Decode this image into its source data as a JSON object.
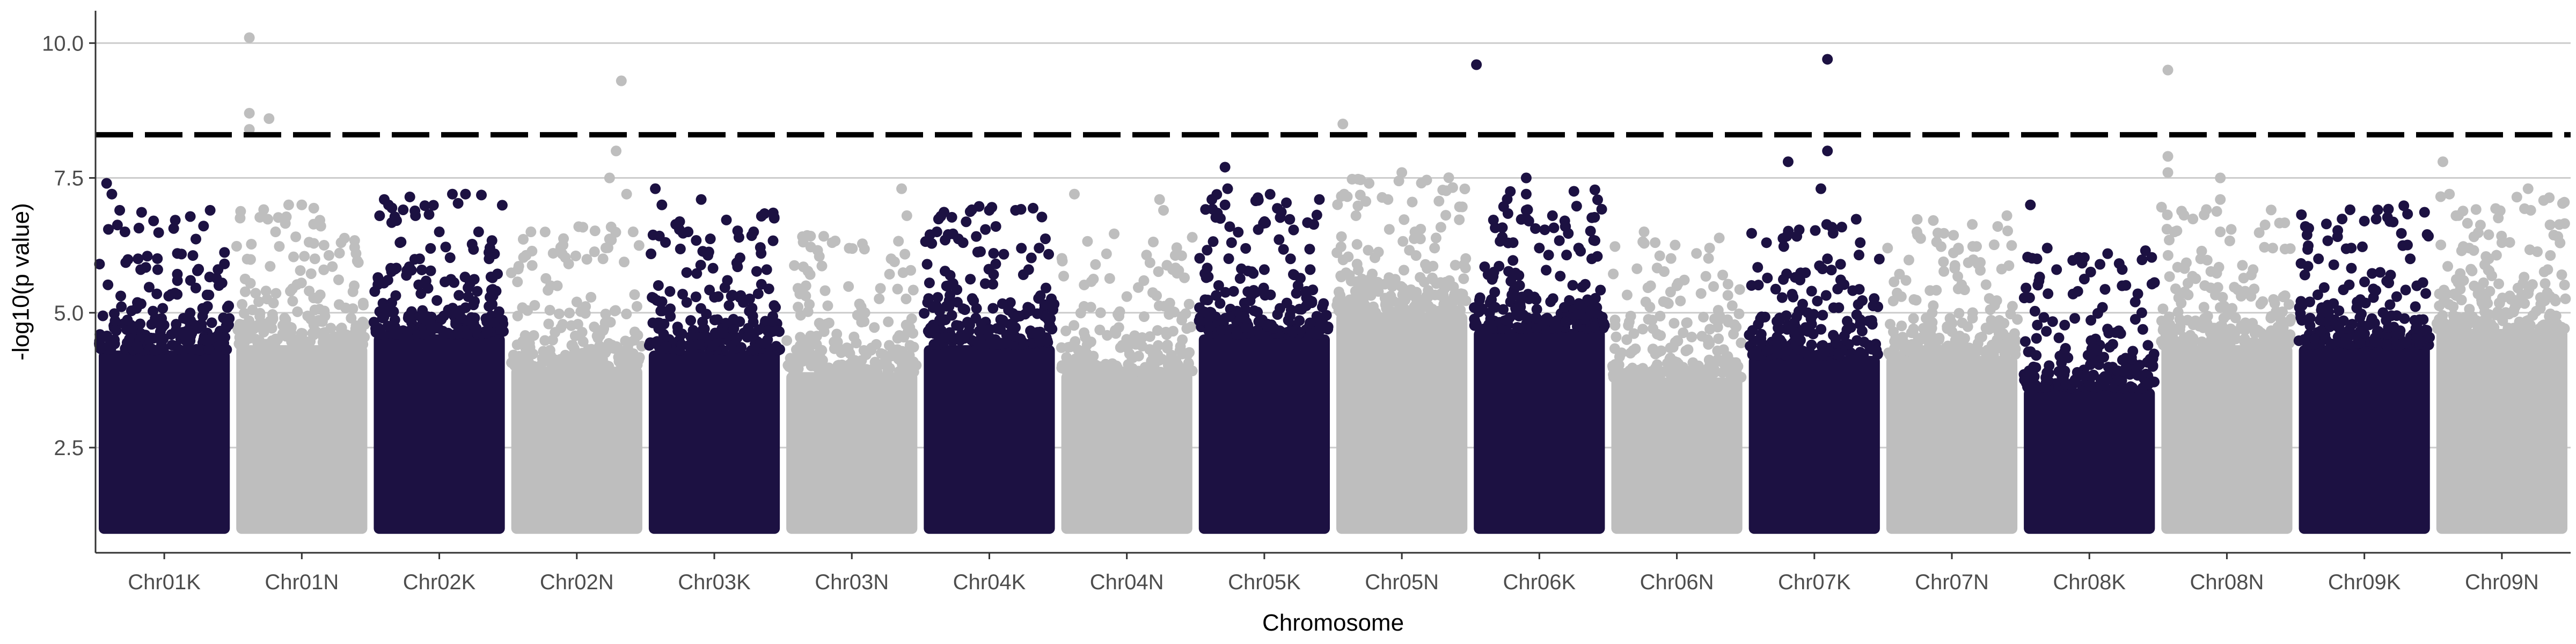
{
  "chart_data": {
    "type": "scatter",
    "subtype": "manhattan",
    "title": "",
    "xlabel": "Chromosome",
    "ylabel": "-log10(p value)",
    "ylim": [
      0.55,
      10.6
    ],
    "y_ticks": [
      2.5,
      5.0,
      7.5,
      10.0
    ],
    "y_tick_labels": [
      "2.5",
      "5.0",
      "7.5",
      "10.0"
    ],
    "grid": "horizontal major lines",
    "legend": "none",
    "colors": {
      "dark": "#1c1142",
      "light": "#bebebe",
      "threshold": "#000000",
      "grid": "#cccccc"
    },
    "threshold": {
      "value": 8.3,
      "style": "dashed"
    },
    "point_floor": 1.0,
    "categories": [
      "Chr01K",
      "Chr01N",
      "Chr02K",
      "Chr02N",
      "Chr03K",
      "Chr03N",
      "Chr04K",
      "Chr04N",
      "Chr05K",
      "Chr05N",
      "Chr06K",
      "Chr06N",
      "Chr07K",
      "Chr07N",
      "Chr08K",
      "Chr08N",
      "Chr09K",
      "Chr09N"
    ],
    "series": [
      {
        "category": "Chr01K",
        "color": "dark",
        "dense_top": 4.3,
        "peaks": [
          [
            0.06,
            7.4
          ],
          [
            0.1,
            7.2
          ],
          [
            0.16,
            6.9
          ],
          [
            0.2,
            6.5
          ],
          [
            0.3,
            6.0
          ],
          [
            0.45,
            5.8
          ],
          [
            0.6,
            6.1
          ],
          [
            0.85,
            6.9
          ],
          [
            0.7,
            5.6
          ]
        ]
      },
      {
        "category": "Chr01N",
        "color": "light",
        "dense_top": 4.4,
        "peaks": [
          [
            0.1,
            10.1
          ],
          [
            0.1,
            8.7
          ],
          [
            0.1,
            8.4
          ],
          [
            0.25,
            8.6
          ],
          [
            0.3,
            6.5
          ],
          [
            0.4,
            7.0
          ],
          [
            0.5,
            7.0
          ],
          [
            0.6,
            6.0
          ],
          [
            0.8,
            6.3
          ],
          [
            0.9,
            5.5
          ]
        ]
      },
      {
        "category": "Chr02K",
        "color": "dark",
        "dense_top": 4.6,
        "peaks": [
          [
            0.08,
            7.1
          ],
          [
            0.2,
            6.3
          ],
          [
            0.35,
            6.0
          ],
          [
            0.5,
            6.5
          ],
          [
            0.6,
            7.2
          ],
          [
            0.7,
            7.2
          ],
          [
            0.8,
            6.5
          ],
          [
            0.88,
            6.0
          ]
        ]
      },
      {
        "category": "Chr02N",
        "color": "light",
        "dense_top": 4.0,
        "peaks": [
          [
            0.15,
            6.5
          ],
          [
            0.3,
            5.5
          ],
          [
            0.5,
            5.2
          ],
          [
            0.75,
            7.5
          ],
          [
            0.8,
            8.0
          ],
          [
            0.84,
            9.3
          ],
          [
            0.88,
            7.2
          ],
          [
            0.93,
            6.5
          ],
          [
            0.7,
            6.0
          ]
        ]
      },
      {
        "category": "Chr03K",
        "color": "dark",
        "dense_top": 4.3,
        "peaks": [
          [
            0.05,
            7.3
          ],
          [
            0.1,
            7.0
          ],
          [
            0.3,
            6.5
          ],
          [
            0.4,
            7.1
          ],
          [
            0.6,
            5.6
          ],
          [
            0.8,
            6.5
          ],
          [
            0.9,
            5.8
          ]
        ]
      },
      {
        "category": "Chr03N",
        "color": "light",
        "dense_top": 3.9,
        "peaks": [
          [
            0.15,
            5.5
          ],
          [
            0.35,
            6.3
          ],
          [
            0.6,
            5.0
          ],
          [
            0.8,
            6.0
          ],
          [
            0.88,
            7.3
          ],
          [
            0.92,
            6.8
          ]
        ]
      },
      {
        "category": "Chr04K",
        "color": "dark",
        "dense_top": 4.4,
        "peaks": [
          [
            0.1,
            6.5
          ],
          [
            0.3,
            6.3
          ],
          [
            0.5,
            6.9
          ],
          [
            0.55,
            6.6
          ],
          [
            0.7,
            6.9
          ],
          [
            0.8,
            5.8
          ],
          [
            0.88,
            6.2
          ]
        ]
      },
      {
        "category": "Chr04N",
        "color": "light",
        "dense_top": 3.9,
        "peaks": [
          [
            0.1,
            7.2
          ],
          [
            0.3,
            5.0
          ],
          [
            0.5,
            5.3
          ],
          [
            0.75,
            7.1
          ],
          [
            0.78,
            6.9
          ],
          [
            0.85,
            5.8
          ]
        ]
      },
      {
        "category": "Chr05K",
        "color": "dark",
        "dense_top": 4.6,
        "peaks": [
          [
            0.2,
            7.7
          ],
          [
            0.22,
            7.3
          ],
          [
            0.2,
            7.0
          ],
          [
            0.25,
            6.3
          ],
          [
            0.5,
            5.8
          ],
          [
            0.7,
            6.0
          ],
          [
            0.85,
            5.8
          ],
          [
            0.92,
            7.1
          ]
        ]
      },
      {
        "category": "Chr05N",
        "color": "light",
        "dense_top": 5.0,
        "peaks": [
          [
            0.05,
            8.5
          ],
          [
            0.06,
            7.2
          ],
          [
            0.15,
            6.8
          ],
          [
            0.25,
            7.4
          ],
          [
            0.5,
            7.6
          ],
          [
            0.6,
            6.5
          ],
          [
            0.75,
            6.2
          ],
          [
            0.85,
            5.5
          ]
        ]
      },
      {
        "category": "Chr06K",
        "color": "dark",
        "dense_top": 4.7,
        "peaks": [
          [
            0.02,
            9.6
          ],
          [
            0.3,
            6.3
          ],
          [
            0.4,
            7.5
          ],
          [
            0.4,
            7.2
          ],
          [
            0.4,
            6.9
          ],
          [
            0.42,
            6.7
          ],
          [
            0.5,
            6.2
          ],
          [
            0.6,
            6.8
          ],
          [
            0.7,
            6.6
          ],
          [
            0.8,
            6.2
          ],
          [
            0.9,
            6.0
          ]
        ]
      },
      {
        "category": "Chr06N",
        "color": "light",
        "dense_top": 3.8,
        "peaks": [
          [
            0.25,
            6.5
          ],
          [
            0.3,
            5.5
          ],
          [
            0.5,
            5.5
          ],
          [
            0.65,
            6.1
          ],
          [
            0.75,
            6.2
          ],
          [
            0.85,
            5.7
          ]
        ]
      },
      {
        "category": "Chr07K",
        "color": "dark",
        "dense_top": 4.2,
        "peaks": [
          [
            0.3,
            7.8
          ],
          [
            0.55,
            7.3
          ],
          [
            0.6,
            9.7
          ],
          [
            0.6,
            8.0
          ],
          [
            0.6,
            6.0
          ],
          [
            0.7,
            5.9
          ],
          [
            0.85,
            6.3
          ],
          [
            0.45,
            5.0
          ]
        ]
      },
      {
        "category": "Chr07N",
        "color": "light",
        "dense_top": 4.2,
        "peaks": [
          [
            0.15,
            5.6
          ],
          [
            0.35,
            5.0
          ],
          [
            0.55,
            6.2
          ],
          [
            0.7,
            5.9
          ],
          [
            0.85,
            6.6
          ],
          [
            0.92,
            6.8
          ]
        ]
      },
      {
        "category": "Chr08K",
        "color": "dark",
        "dense_top": 3.6,
        "peaks": [
          [
            0.05,
            7.0
          ],
          [
            0.1,
            6.0
          ],
          [
            0.25,
            5.8
          ],
          [
            0.6,
            5.1
          ],
          [
            0.75,
            5.5
          ],
          [
            0.85,
            5.2
          ],
          [
            0.9,
            5.0
          ]
        ]
      },
      {
        "category": "Chr08N",
        "color": "light",
        "dense_top": 4.4,
        "peaks": [
          [
            0.05,
            9.5
          ],
          [
            0.05,
            7.9
          ],
          [
            0.05,
            7.6
          ],
          [
            0.1,
            6.5
          ],
          [
            0.3,
            6.0
          ],
          [
            0.45,
            7.5
          ],
          [
            0.45,
            7.1
          ],
          [
            0.45,
            6.5
          ],
          [
            0.7,
            5.8
          ],
          [
            0.85,
            6.2
          ]
        ]
      },
      {
        "category": "Chr09K",
        "color": "dark",
        "dense_top": 4.4,
        "peaks": [
          [
            0.05,
            6.6
          ],
          [
            0.15,
            6.0
          ],
          [
            0.4,
            6.2
          ],
          [
            0.5,
            6.7
          ],
          [
            0.7,
            5.7
          ],
          [
            0.85,
            6.0
          ],
          [
            0.9,
            5.5
          ]
        ]
      },
      {
        "category": "Chr09N",
        "color": "light",
        "dense_top": 4.7,
        "peaks": [
          [
            0.05,
            7.8
          ],
          [
            0.1,
            7.2
          ],
          [
            0.15,
            6.8
          ],
          [
            0.25,
            6.2
          ],
          [
            0.4,
            6.0
          ],
          [
            0.5,
            6.3
          ],
          [
            0.7,
            7.3
          ],
          [
            0.72,
            6.9
          ],
          [
            0.85,
            5.8
          ]
        ]
      }
    ]
  }
}
